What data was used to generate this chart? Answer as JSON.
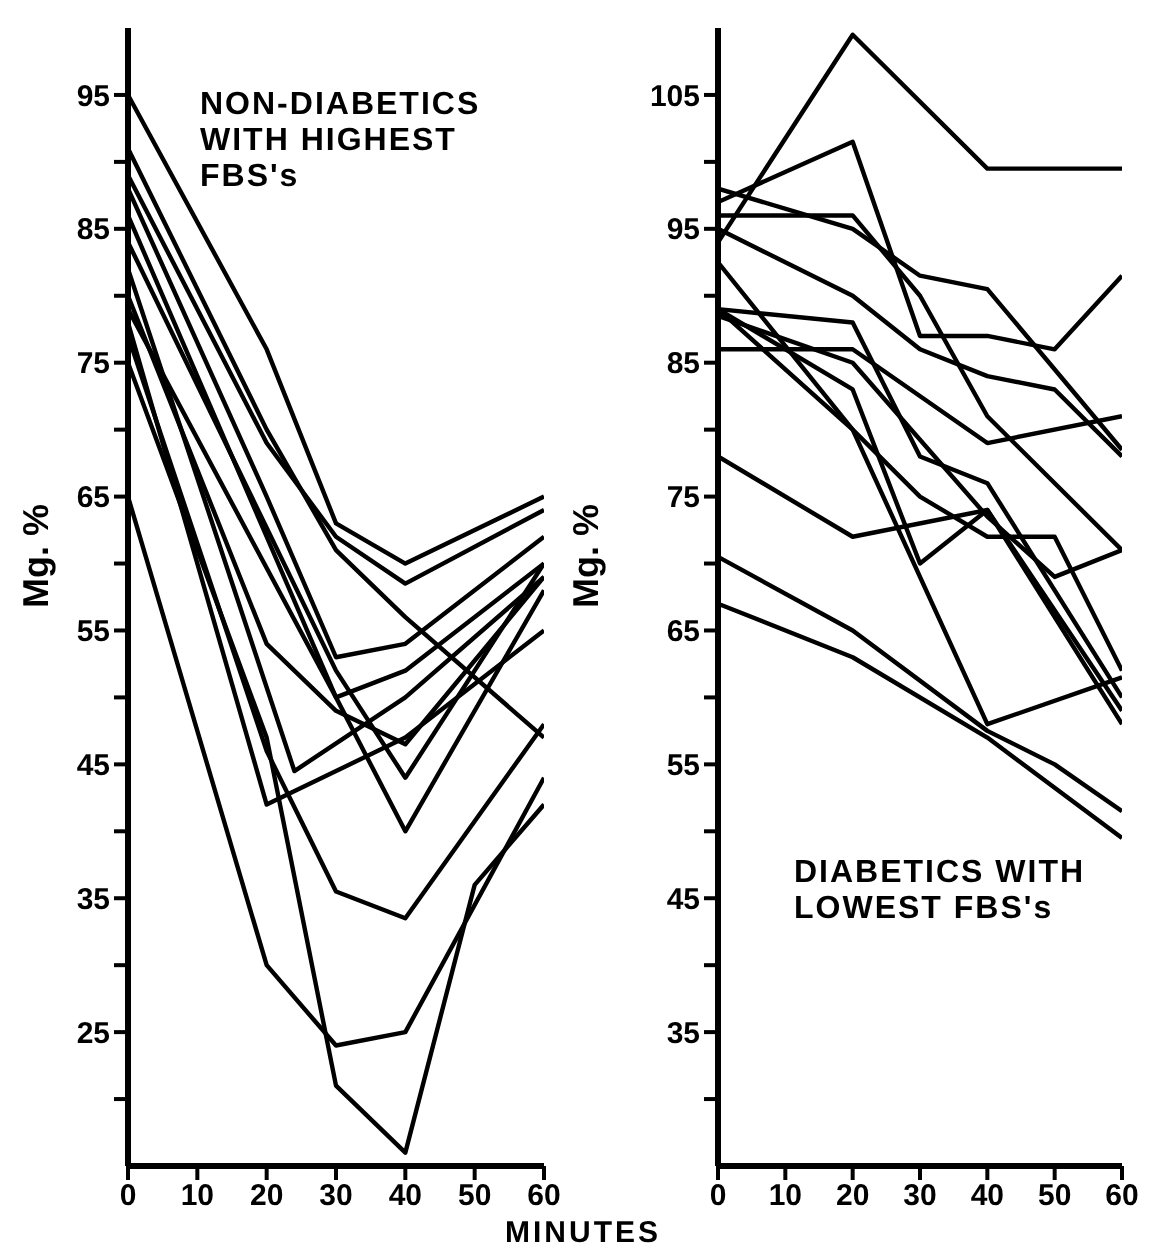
{
  "chart_data": [
    {
      "type": "line",
      "xlabel": "MINUTES",
      "ylabel": "Mg. %",
      "annotations": [
        "NON-DIABETICS\nWITH HIGHEST\nFBS's"
      ],
      "xlim": [
        0,
        60
      ],
      "xticks": [
        0,
        10,
        20,
        30,
        40,
        50,
        60
      ],
      "ylim": [
        15,
        100
      ],
      "yticks": [
        {
          "value": 20,
          "label": null
        },
        25,
        {
          "value": 30,
          "label": null
        },
        35,
        {
          "value": 40,
          "label": null
        },
        45,
        {
          "value": 50,
          "label": null
        },
        55,
        {
          "value": 60,
          "label": null
        },
        65,
        {
          "value": 70,
          "label": null
        },
        75,
        {
          "value": 80,
          "label": null
        },
        85,
        {
          "value": 90,
          "label": null
        },
        95
      ],
      "grid": false,
      "marker": "none",
      "line_style": "solid",
      "series": [
        {
          "color": "#000000",
          "x": [
            0,
            20,
            30,
            40,
            60
          ],
          "values": [
            95,
            76,
            63,
            60,
            65
          ]
        },
        {
          "color": "#000000",
          "x": [
            0,
            20,
            30,
            40,
            60
          ],
          "values": [
            89,
            69,
            62,
            58.5,
            64
          ]
        },
        {
          "color": "#000000",
          "x": [
            0,
            20,
            30,
            40,
            60
          ],
          "values": [
            91,
            70,
            61,
            56,
            47
          ]
        },
        {
          "color": "#000000",
          "x": [
            0,
            20,
            30,
            40,
            60
          ],
          "values": [
            88,
            65,
            53,
            54,
            62
          ]
        },
        {
          "color": "#000000",
          "x": [
            0,
            20,
            30,
            40,
            60
          ],
          "values": [
            86,
            62,
            50,
            52,
            60
          ]
        },
        {
          "color": "#000000",
          "x": [
            0,
            20,
            30,
            40,
            60
          ],
          "values": [
            80,
            54,
            49,
            46.5,
            59
          ]
        },
        {
          "color": "#000000",
          "x": [
            0,
            24,
            40,
            60
          ],
          "values": [
            82,
            44.5,
            50,
            59
          ]
        },
        {
          "color": "#000000",
          "x": [
            0,
            20,
            40,
            60
          ],
          "values": [
            78,
            42,
            47,
            55
          ]
        },
        {
          "color": "#000000",
          "x": [
            0,
            30,
            40,
            60
          ],
          "values": [
            84,
            52,
            44,
            60
          ]
        },
        {
          "color": "#000000",
          "x": [
            0,
            30,
            40,
            60
          ],
          "values": [
            79,
            50,
            40,
            58
          ]
        },
        {
          "color": "#000000",
          "x": [
            0,
            20,
            30,
            40,
            60
          ],
          "values": [
            77,
            46,
            35.5,
            33.5,
            48
          ]
        },
        {
          "color": "#000000",
          "x": [
            0,
            20,
            30,
            40,
            60
          ],
          "values": [
            65,
            30,
            24,
            25,
            44
          ]
        },
        {
          "color": "#000000",
          "x": [
            0,
            20,
            30,
            40,
            50,
            60
          ],
          "values": [
            75,
            47,
            21,
            16,
            36,
            42
          ]
        }
      ]
    },
    {
      "type": "line",
      "ylabel": "Mg. %",
      "annotations": [
        "DIABETICS WITH\nLOWEST FBS's"
      ],
      "xlim": [
        0,
        60
      ],
      "xticks": [
        0,
        10,
        20,
        30,
        40,
        50,
        60
      ],
      "ylim": [
        25,
        110
      ],
      "yticks": [
        {
          "value": 30,
          "label": null
        },
        35,
        {
          "value": 40,
          "label": null
        },
        45,
        {
          "value": 50,
          "label": null
        },
        55,
        {
          "value": 60,
          "label": null
        },
        65,
        {
          "value": 70,
          "label": null
        },
        75,
        {
          "value": 80,
          "label": null
        },
        85,
        {
          "value": 90,
          "label": null
        },
        95,
        {
          "value": 100,
          "label": null
        },
        105
      ],
      "grid": false,
      "marker": "none",
      "line_style": "solid",
      "series": [
        {
          "color": "#000000",
          "x": [
            0,
            20,
            40,
            60
          ],
          "values": [
            94,
            109.5,
            99.5,
            99.5
          ]
        },
        {
          "color": "#000000",
          "x": [
            0,
            20,
            30,
            40,
            50,
            60
          ],
          "values": [
            97,
            101.5,
            87,
            87,
            86,
            91.5
          ]
        },
        {
          "color": "#000000",
          "x": [
            0,
            20,
            30,
            40,
            60
          ],
          "values": [
            98,
            95,
            91.5,
            90.5,
            78.5
          ]
        },
        {
          "color": "#000000",
          "x": [
            0,
            20,
            30,
            40,
            60
          ],
          "values": [
            96,
            96,
            90,
            81,
            71
          ]
        },
        {
          "color": "#000000",
          "x": [
            0,
            20,
            30,
            40,
            50,
            60
          ],
          "values": [
            95,
            90,
            86,
            84,
            83,
            78
          ]
        },
        {
          "color": "#000000",
          "x": [
            0,
            20,
            40,
            60
          ],
          "values": [
            92.5,
            80,
            58,
            61.5
          ]
        },
        {
          "color": "#000000",
          "x": [
            0,
            20,
            30,
            40,
            60
          ],
          "values": [
            89,
            88,
            78,
            76,
            60
          ]
        },
        {
          "color": "#000000",
          "x": [
            0,
            20,
            30,
            40,
            60
          ],
          "values": [
            89,
            83,
            70,
            74,
            59
          ]
        },
        {
          "color": "#000000",
          "x": [
            0,
            20,
            30,
            40,
            50,
            60
          ],
          "values": [
            89,
            80,
            75,
            72,
            72,
            62
          ]
        },
        {
          "color": "#000000",
          "x": [
            0,
            20,
            40,
            60
          ],
          "values": [
            86,
            86,
            79,
            81
          ]
        },
        {
          "color": "#000000",
          "x": [
            0,
            20,
            40,
            50,
            60
          ],
          "values": [
            88.5,
            85,
            73.5,
            69,
            71
          ]
        },
        {
          "color": "#000000",
          "x": [
            0,
            20,
            40,
            60
          ],
          "values": [
            78,
            72,
            74,
            58
          ]
        },
        {
          "color": "#000000",
          "x": [
            0,
            20,
            40,
            50,
            60
          ],
          "values": [
            70.5,
            65,
            57.5,
            55,
            51.5
          ]
        },
        {
          "color": "#000000",
          "x": [
            0,
            20,
            40,
            60
          ],
          "values": [
            67,
            63,
            57,
            49.5
          ]
        }
      ]
    }
  ]
}
